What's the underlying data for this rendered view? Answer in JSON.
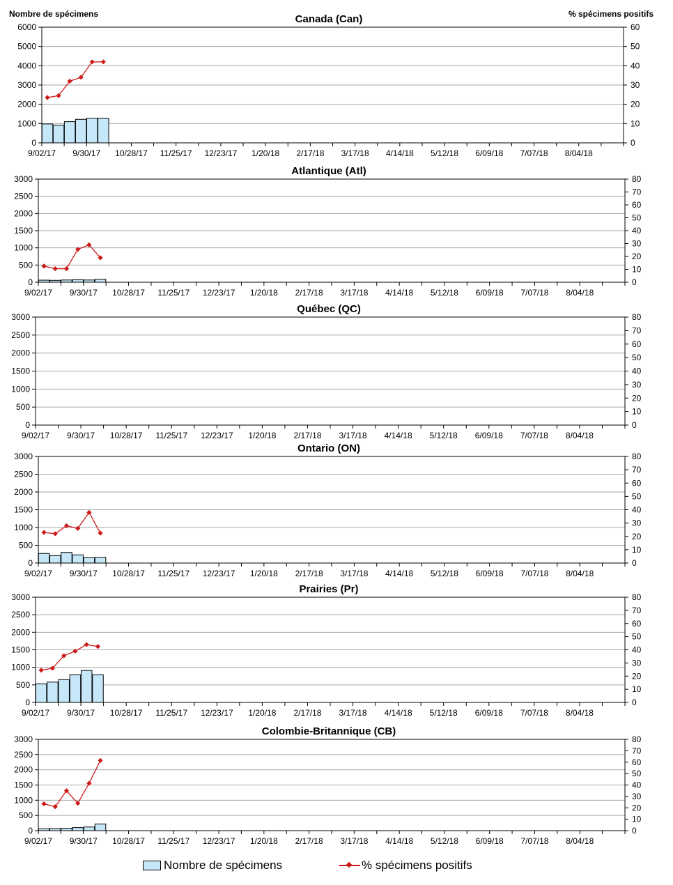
{
  "left_axis_title": "Nombre de spécimens",
  "right_axis_title": "% spécimens positifs",
  "legend": {
    "bar_label": "Nombre de spécimens",
    "line_label": "% spécimens positifs"
  },
  "colors": {
    "bar_fill": "#c5e7f8",
    "line": "#cc1a1a",
    "grid": "#a6a6a6"
  },
  "chart_data": [
    {
      "type": "bar+line",
      "title": "Canada (Can)",
      "x_tick_labels": [
        "9/02/17",
        "9/30/17",
        "10/28/17",
        "11/25/17",
        "12/23/17",
        "1/20/18",
        "2/17/18",
        "3/17/18",
        "4/14/18",
        "5/12/18",
        "6/09/18",
        "7/07/18",
        "8/04/18"
      ],
      "weeks": 52,
      "left_ylim": [
        0,
        6000
      ],
      "left_ticks": [
        0,
        1000,
        2000,
        3000,
        4000,
        5000,
        6000
      ],
      "right_ylim": [
        0,
        60
      ],
      "right_ticks": [
        0,
        10,
        20,
        30,
        40,
        50,
        60
      ],
      "grid": true,
      "series": [
        {
          "name": "Nombre de spécimens",
          "type": "bar",
          "values": [
            980,
            920,
            1100,
            1220,
            1280,
            1280
          ]
        },
        {
          "name": "% spécimens positifs",
          "type": "line",
          "values": [
            23.5,
            24.5,
            32,
            34,
            42,
            42
          ]
        }
      ]
    },
    {
      "type": "bar+line",
      "title": "Atlantique (Atl)",
      "x_tick_labels": [
        "9/02/17",
        "9/30/17",
        "10/28/17",
        "11/25/17",
        "12/23/17",
        "1/20/18",
        "2/17/18",
        "3/17/18",
        "4/14/18",
        "5/12/18",
        "6/09/18",
        "7/07/18",
        "8/04/18"
      ],
      "weeks": 52,
      "left_ylim": [
        0,
        3000
      ],
      "left_ticks": [
        0,
        500,
        1000,
        1500,
        2000,
        2500,
        3000
      ],
      "right_ylim": [
        0,
        80
      ],
      "right_ticks": [
        0,
        10,
        20,
        30,
        40,
        50,
        60,
        70,
        80
      ],
      "grid": true,
      "series": [
        {
          "name": "Nombre de spécimens",
          "type": "bar",
          "values": [
            60,
            55,
            65,
            70,
            65,
            85
          ]
        },
        {
          "name": "% spécimens positifs",
          "type": "line",
          "values": [
            12.5,
            10.5,
            10.5,
            25.5,
            29,
            19
          ]
        }
      ]
    },
    {
      "type": "bar+line",
      "title": "Québec (QC)",
      "x_tick_labels": [
        "9/02/17",
        "9/30/17",
        "10/28/17",
        "11/25/17",
        "12/23/17",
        "1/20/18",
        "2/17/18",
        "3/17/18",
        "4/14/18",
        "5/12/18",
        "6/09/18",
        "7/07/18",
        "8/04/18"
      ],
      "weeks": 52,
      "left_ylim": [
        0,
        3000
      ],
      "left_ticks": [
        0,
        500,
        1000,
        1500,
        2000,
        2500,
        3000
      ],
      "right_ylim": [
        0,
        80
      ],
      "right_ticks": [
        0,
        10,
        20,
        30,
        40,
        50,
        60,
        70,
        80
      ],
      "grid": true,
      "series": [
        {
          "name": "Nombre de spécimens",
          "type": "bar",
          "values": []
        },
        {
          "name": "% spécimens positifs",
          "type": "line",
          "values": []
        }
      ]
    },
    {
      "type": "bar+line",
      "title": "Ontario (ON)",
      "x_tick_labels": [
        "9/02/17",
        "9/30/17",
        "10/28/17",
        "11/25/17",
        "12/23/17",
        "1/20/18",
        "2/17/18",
        "3/17/18",
        "4/14/18",
        "5/12/18",
        "6/09/18",
        "7/07/18",
        "8/04/18"
      ],
      "weeks": 52,
      "left_ylim": [
        0,
        3000
      ],
      "left_ticks": [
        0,
        500,
        1000,
        1500,
        2000,
        2500,
        3000
      ],
      "right_ylim": [
        0,
        80
      ],
      "right_ticks": [
        0,
        10,
        20,
        30,
        40,
        50,
        60,
        70,
        80
      ],
      "grid": true,
      "series": [
        {
          "name": "Nombre de spécimens",
          "type": "bar",
          "values": [
            270,
            210,
            300,
            230,
            150,
            160
          ]
        },
        {
          "name": "% spécimens positifs",
          "type": "line",
          "values": [
            23,
            22,
            28,
            26,
            38,
            22.5
          ]
        }
      ]
    },
    {
      "type": "bar+line",
      "title": "Prairies (Pr)",
      "x_tick_labels": [
        "9/02/17",
        "9/30/17",
        "10/28/17",
        "11/25/17",
        "12/23/17",
        "1/20/18",
        "2/17/18",
        "3/17/18",
        "4/14/18",
        "5/12/18",
        "6/09/18",
        "7/07/18",
        "8/04/18"
      ],
      "weeks": 52,
      "left_ylim": [
        0,
        3000
      ],
      "left_ticks": [
        0,
        500,
        1000,
        1500,
        2000,
        2500,
        3000
      ],
      "right_ylim": [
        0,
        80
      ],
      "right_ticks": [
        0,
        10,
        20,
        30,
        40,
        50,
        60,
        70,
        80
      ],
      "grid": true,
      "series": [
        {
          "name": "Nombre de spécimens",
          "type": "bar",
          "values": [
            530,
            580,
            650,
            790,
            910,
            790
          ]
        },
        {
          "name": "% spécimens positifs",
          "type": "line",
          "values": [
            24.5,
            26,
            35.5,
            39,
            44,
            42.5
          ]
        }
      ]
    },
    {
      "type": "bar+line",
      "title": "Colombie-Britannique (CB)",
      "x_tick_labels": [
        "9/02/17",
        "9/30/17",
        "10/28/17",
        "11/25/17",
        "12/23/17",
        "1/20/18",
        "2/17/18",
        "3/17/18",
        "4/14/18",
        "5/12/18",
        "6/09/18",
        "7/07/18",
        "8/04/18"
      ],
      "weeks": 52,
      "left_ylim": [
        0,
        3000
      ],
      "left_ticks": [
        0,
        500,
        1000,
        1500,
        2000,
        2500,
        3000
      ],
      "right_ylim": [
        0,
        80
      ],
      "right_ticks": [
        0,
        10,
        20,
        30,
        40,
        50,
        60,
        70,
        80
      ],
      "grid": true,
      "series": [
        {
          "name": "Nombre de spécimens",
          "type": "bar",
          "values": [
            60,
            70,
            80,
            100,
            120,
            220
          ]
        },
        {
          "name": "% spécimens positifs",
          "type": "line",
          "values": [
            23.5,
            21,
            35,
            24,
            41.5,
            61.5
          ]
        }
      ]
    }
  ]
}
